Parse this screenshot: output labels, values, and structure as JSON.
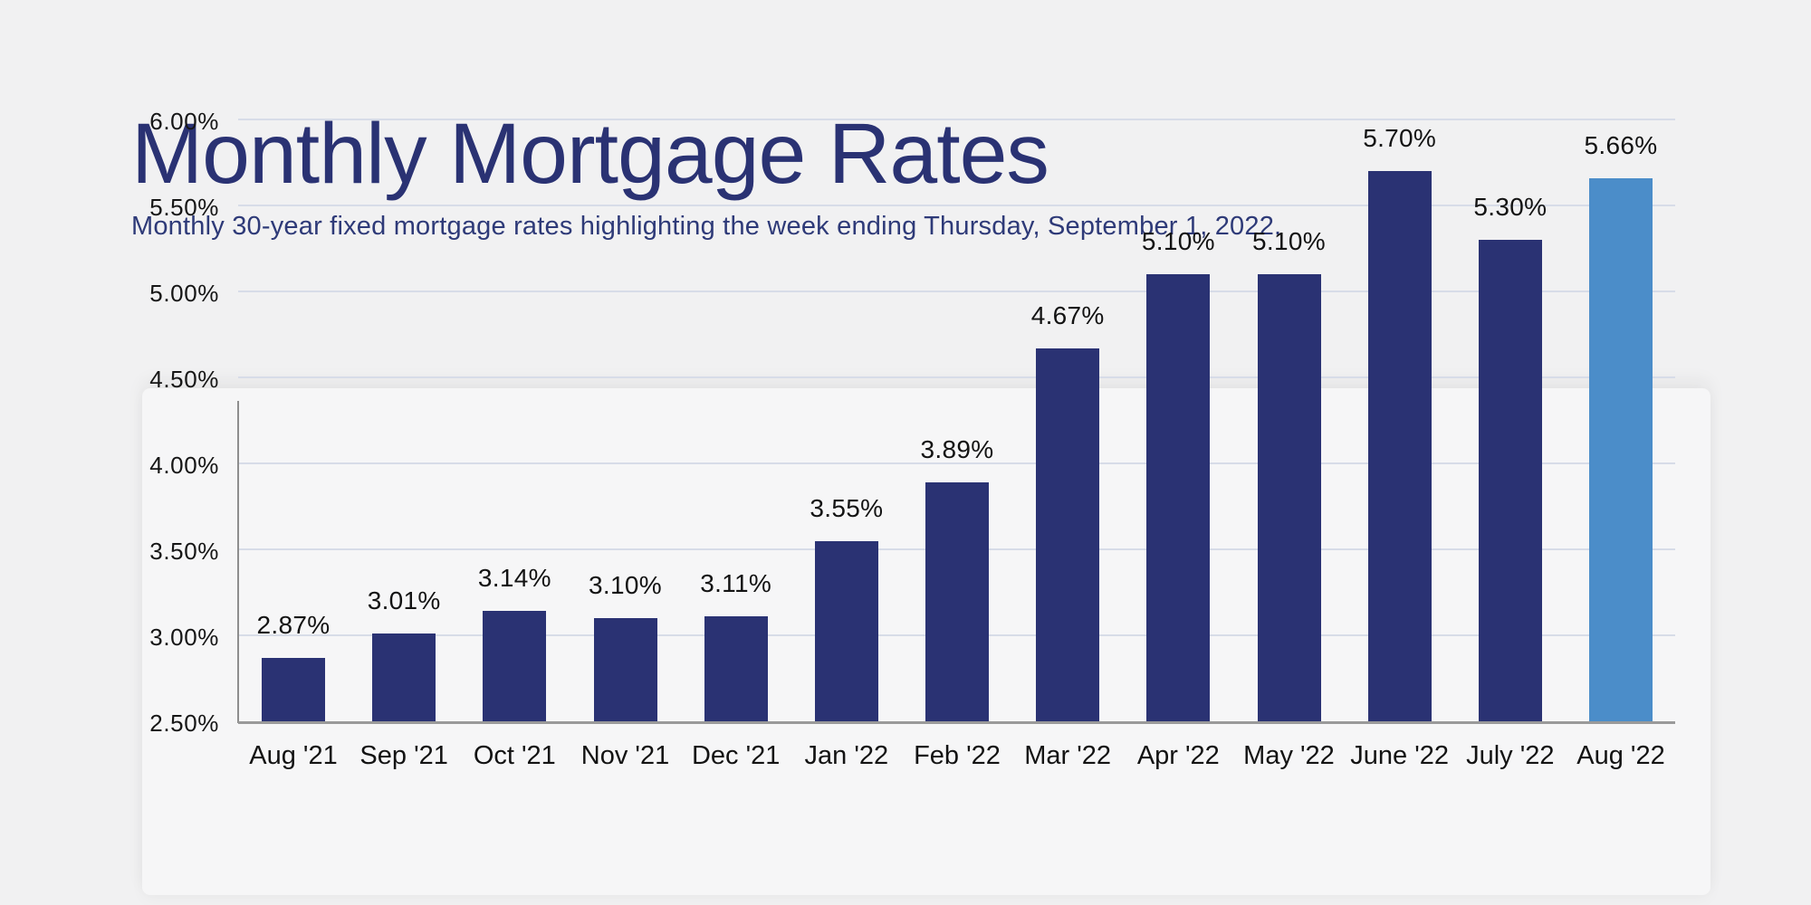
{
  "header": {
    "title": "Monthly Mortgage Rates",
    "subtitle": "Monthly 30-year fixed mortgage rates highlighting the week ending Thursday, September 1, 2022."
  },
  "colors": {
    "background": "#f1f1f2",
    "card_background": "#f6f6f7",
    "bar": "#2a3273",
    "bar_highlight": "#4b8dc9",
    "title_text": "#2a3273",
    "axis_label_text": "#161616",
    "gridline": "#d7dce8",
    "axis_line": "#9a9a9a"
  },
  "chart_data": {
    "type": "bar",
    "title": "Monthly Mortgage Rates",
    "subtitle": "Monthly 30-year fixed mortgage rates highlighting the week ending Thursday, September 1, 2022.",
    "categories": [
      "Aug '21",
      "Sep '21",
      "Oct '21",
      "Nov '21",
      "Dec '21",
      "Jan '22",
      "Feb '22",
      "Mar '22",
      "Apr '22",
      "May '22",
      "June '22",
      "July '22",
      "Aug '22"
    ],
    "values": [
      2.87,
      3.01,
      3.14,
      3.1,
      3.11,
      3.55,
      3.89,
      4.67,
      5.1,
      5.1,
      5.7,
      5.3,
      5.66
    ],
    "value_labels": [
      "2.87%",
      "3.01%",
      "3.14%",
      "3.10%",
      "3.11%",
      "3.55%",
      "3.89%",
      "4.67%",
      "5.10%",
      "5.10%",
      "5.70%",
      "5.30%",
      "5.66%"
    ],
    "highlight_index": 12,
    "xlabel": "",
    "ylabel": "",
    "ylim": [
      2.5,
      6.0
    ],
    "tick_step": 0.5,
    "grid": true,
    "legend": "none",
    "y_ticks": [
      {
        "value": 6.0,
        "label": "6.00%"
      },
      {
        "value": 5.5,
        "label": "5.50%"
      },
      {
        "value": 5.0,
        "label": "5.00%"
      },
      {
        "value": 4.5,
        "label": "4.50%"
      },
      {
        "value": 4.0,
        "label": "4.00%"
      },
      {
        "value": 3.5,
        "label": "3.50%"
      },
      {
        "value": 3.0,
        "label": "3.00%"
      },
      {
        "value": 2.5,
        "label": "2.50%"
      }
    ]
  }
}
